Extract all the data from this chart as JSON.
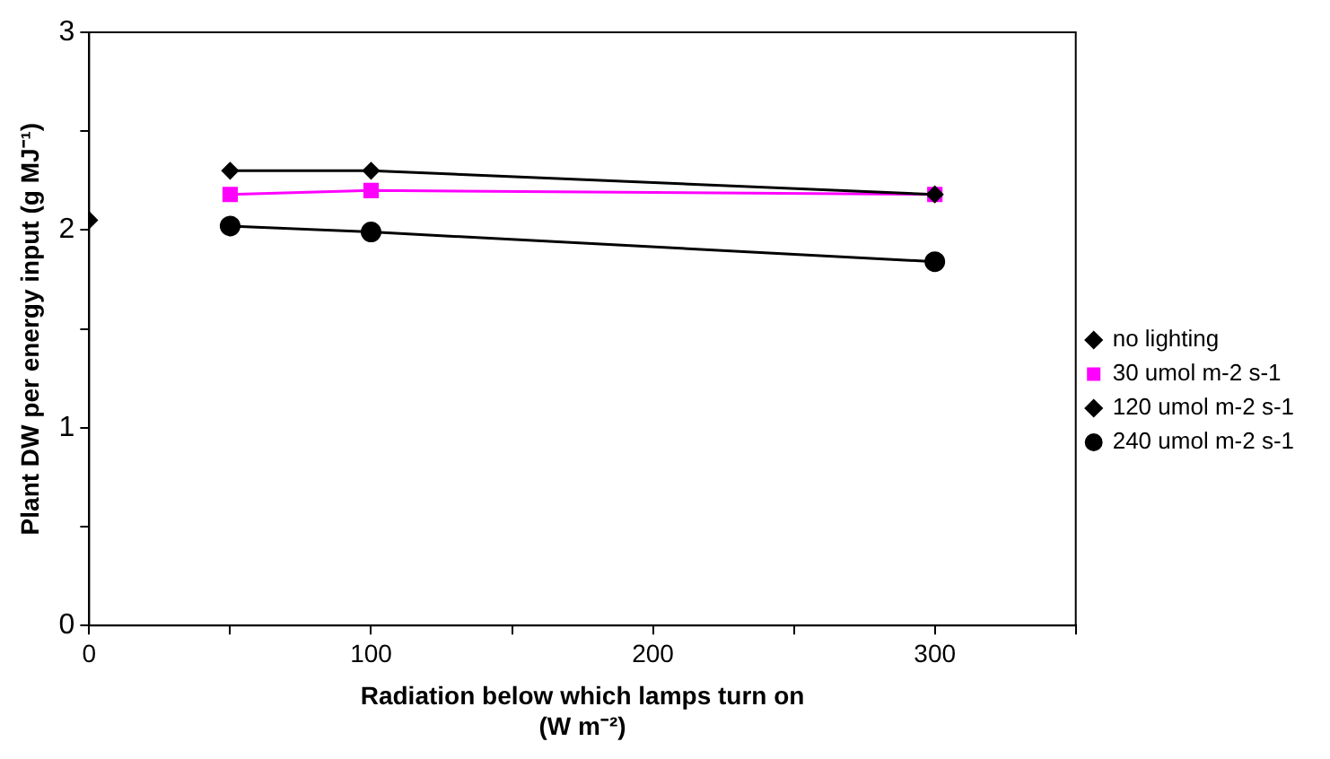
{
  "chart_data": {
    "type": "line",
    "xlabel": "Radiation below which lamps turn on (W m⁻²)",
    "ylabel": "Plant DW per energy input (g MJ⁻¹)",
    "xlim": [
      0,
      350
    ],
    "xticks": [
      0,
      {
        "value": 50,
        "label": null
      },
      100,
      {
        "value": 150,
        "label": null
      },
      200,
      {
        "value": 250,
        "label": null
      },
      300,
      {
        "value": 350,
        "label": null
      }
    ],
    "ylim": [
      0,
      3
    ],
    "yticks": [
      0,
      {
        "value": 0.5,
        "label": null
      },
      1,
      {
        "value": 1.5,
        "label": null
      },
      2,
      {
        "value": 2.5,
        "label": null
      },
      3
    ],
    "grid": false,
    "legend": "right",
    "line_style": "solid",
    "series": [
      {
        "name": "no lighting",
        "type": "scatter",
        "marker": "diamond",
        "color": "#000000",
        "x": [
          0
        ],
        "values": [
          2.05
        ]
      },
      {
        "name": "30 umol m-2 s-1",
        "marker": "square",
        "color": "#ff00ff",
        "x": [
          50,
          100,
          300
        ],
        "values": [
          2.18,
          2.2,
          2.18
        ]
      },
      {
        "name": "120 umol m-2 s-1",
        "marker": "diamond",
        "color": "#000000",
        "x": [
          50,
          100,
          300
        ],
        "values": [
          2.3,
          2.3,
          2.18
        ]
      },
      {
        "name": "240 umol m-2 s-1",
        "marker": "circle",
        "color": "#000000",
        "x": [
          50,
          100,
          300
        ],
        "values": [
          2.02,
          1.99,
          1.84
        ]
      }
    ]
  }
}
